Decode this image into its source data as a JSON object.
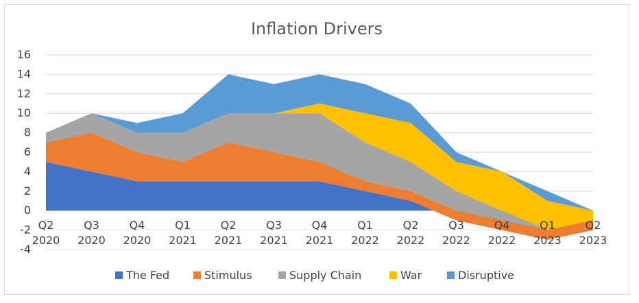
{
  "chart_data": {
    "type": "area",
    "stacked": true,
    "title": "Inflation Drivers",
    "categories": [
      [
        "Q2",
        "2020"
      ],
      [
        "Q3",
        "2020"
      ],
      [
        "Q4",
        "2020"
      ],
      [
        "Q1",
        "2021"
      ],
      [
        "Q2",
        "2021"
      ],
      [
        "Q3",
        "2021"
      ],
      [
        "Q4",
        "2021"
      ],
      [
        "Q1",
        "2022"
      ],
      [
        "Q2",
        "2022"
      ],
      [
        "Q3",
        "2022"
      ],
      [
        "Q4",
        "2022"
      ],
      [
        "Q1",
        "2023"
      ],
      [
        "Q2",
        "2023"
      ]
    ],
    "ylim": [
      -4,
      16
    ],
    "yticks": [
      16,
      14,
      12,
      10,
      8,
      6,
      4,
      2,
      0,
      -2,
      -4
    ],
    "grid": true,
    "legend_position": "bottom",
    "series": [
      {
        "name": "The Fed",
        "color": "#4472C4",
        "values": [
          5,
          4,
          3,
          3,
          3,
          3,
          3,
          2,
          1,
          -1,
          -2,
          -3,
          -2
        ]
      },
      {
        "name": "Stimulus",
        "color": "#ED7D31",
        "values": [
          2,
          4,
          3,
          2,
          4,
          3,
          2,
          1,
          1,
          1,
          1,
          1,
          1
        ]
      },
      {
        "name": "Supply Chain",
        "color": "#A5A5A5",
        "values": [
          1,
          2,
          2,
          3,
          3,
          4,
          5,
          4,
          3,
          2,
          1,
          0,
          0
        ]
      },
      {
        "name": "War",
        "color": "#FFC000",
        "values": [
          0,
          0,
          0,
          0,
          0,
          0,
          1,
          3,
          4,
          3,
          4,
          3,
          1
        ]
      },
      {
        "name": "Disruptive",
        "color": "#5B9BD5",
        "values": [
          0,
          0,
          1,
          2,
          4,
          3,
          3,
          3,
          2,
          1,
          0,
          1,
          0
        ]
      }
    ]
  }
}
